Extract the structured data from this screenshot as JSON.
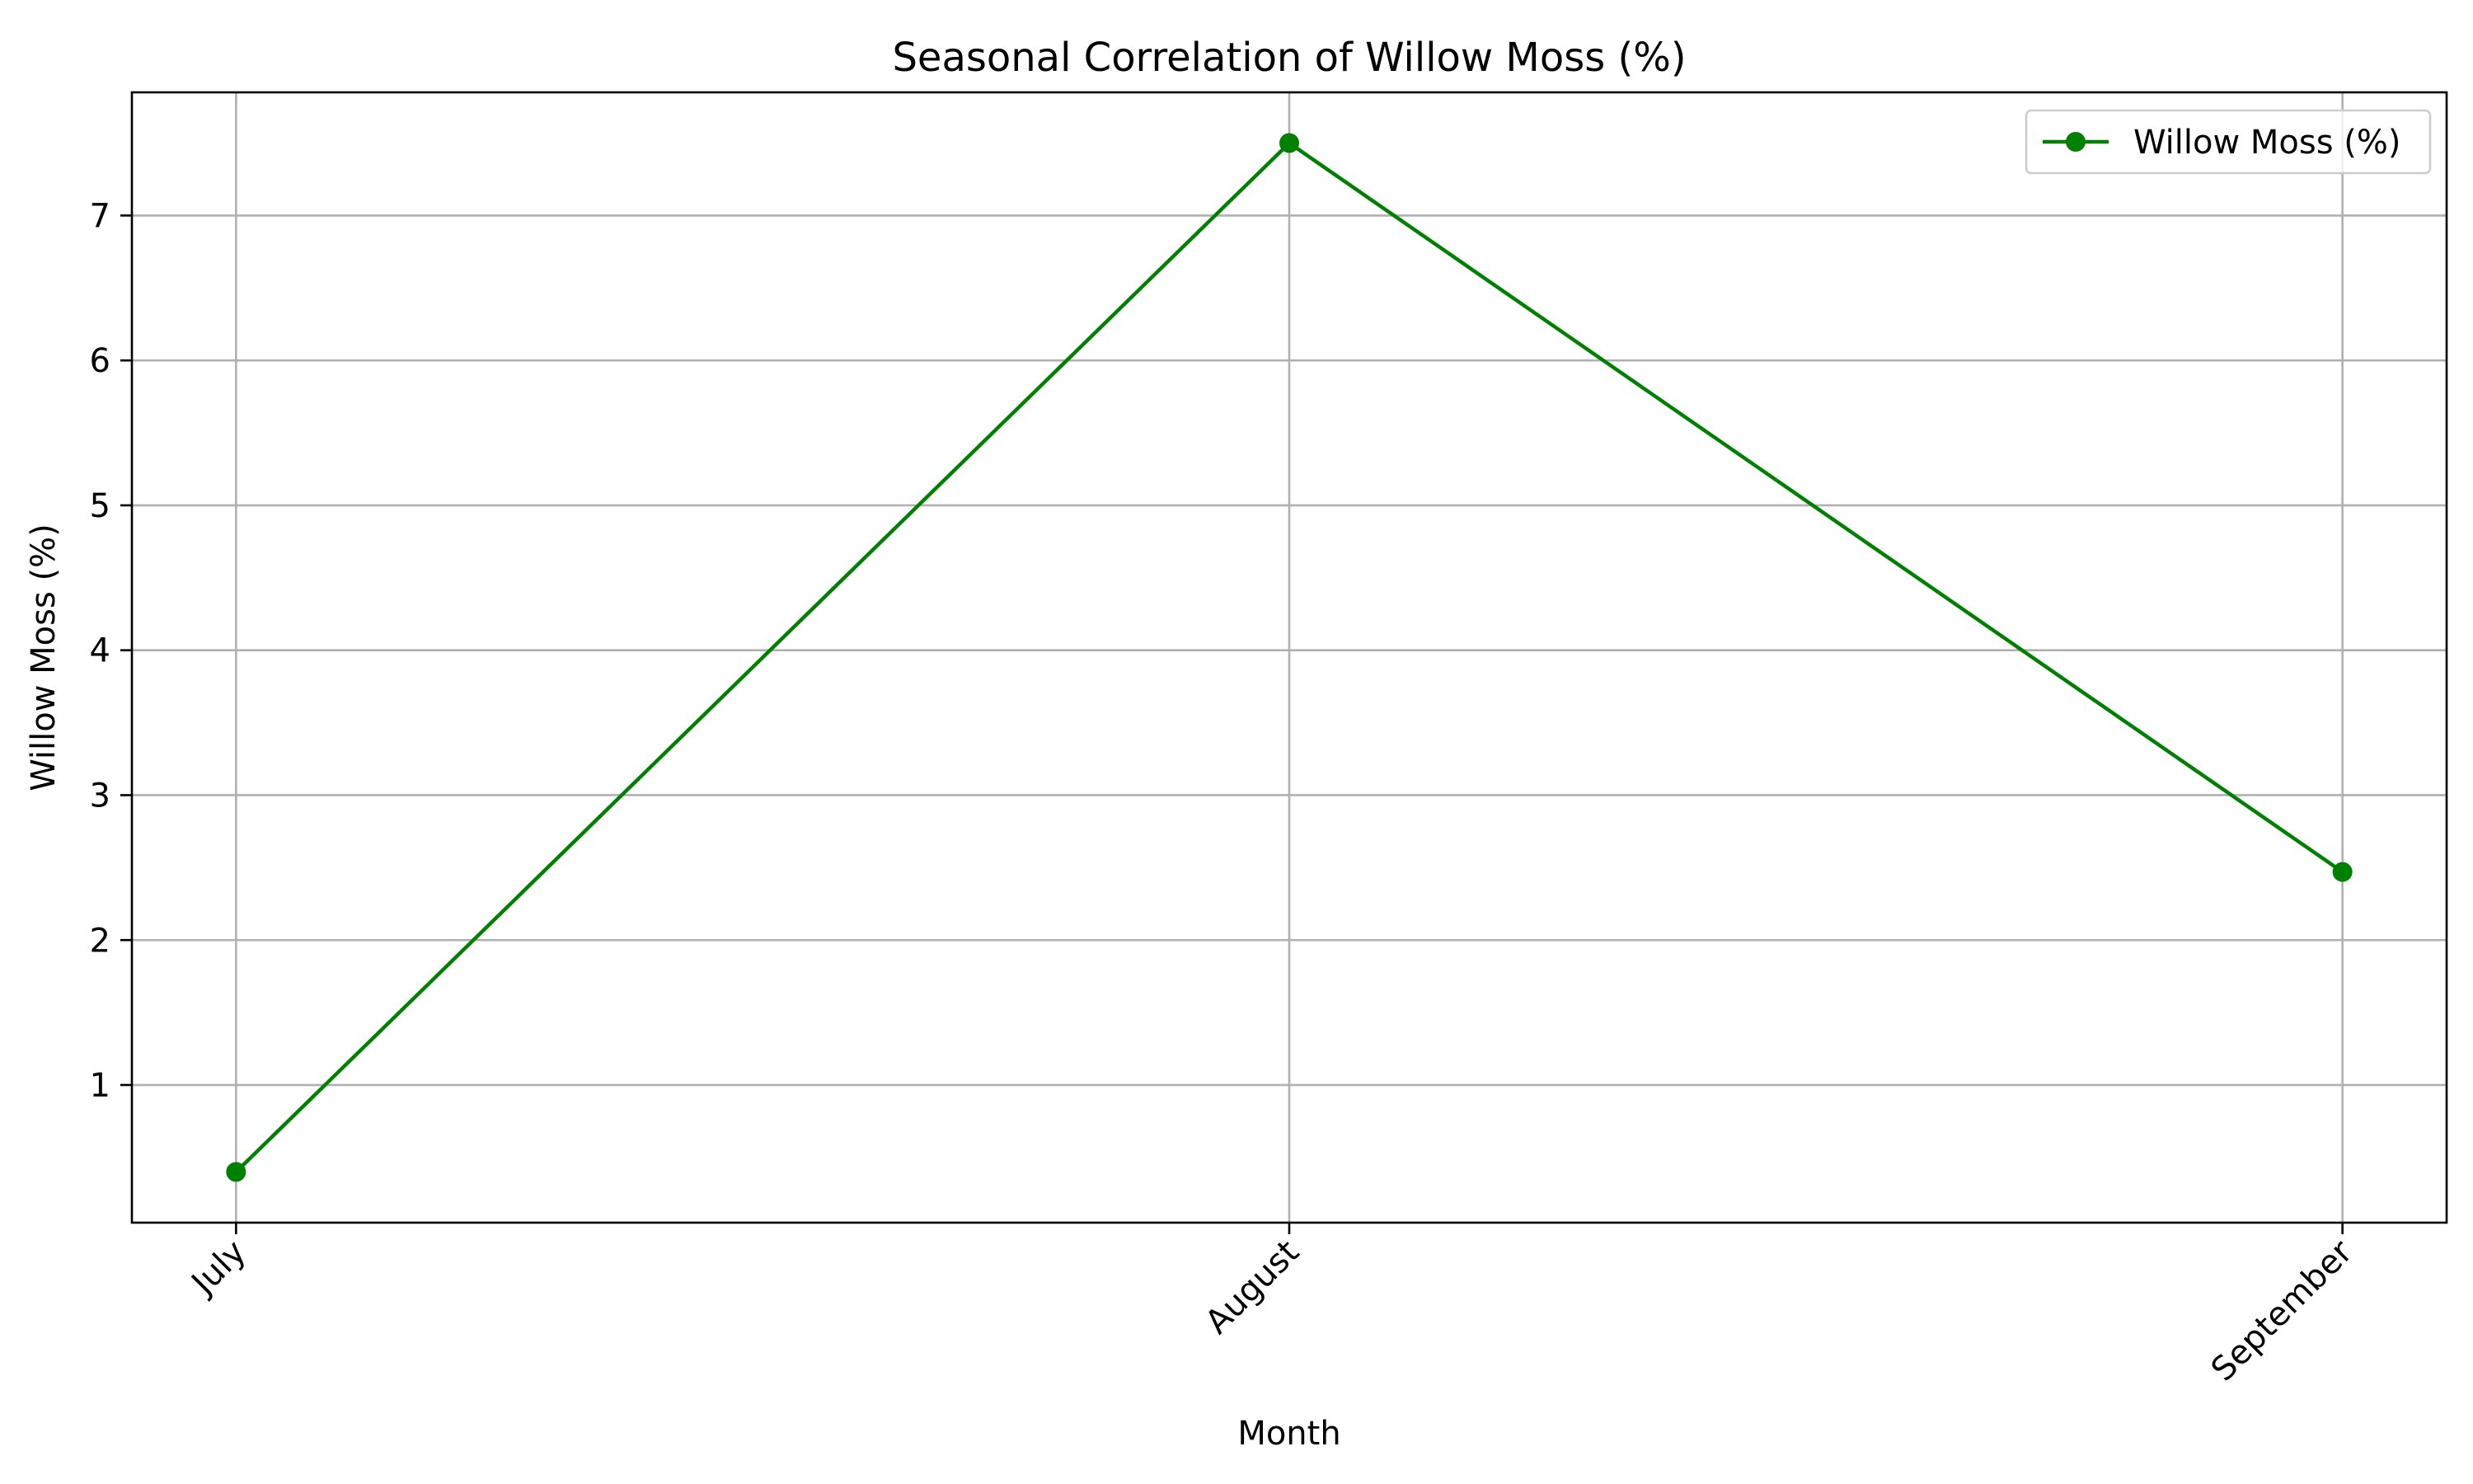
{
  "chart_data": {
    "type": "line",
    "title": "Seasonal Correlation of Willow Moss (%)",
    "xlabel": "Month",
    "ylabel": "Willow Moss (%)",
    "categories": [
      "July",
      "August",
      "September"
    ],
    "series": [
      {
        "name": "Willow Moss (%)",
        "values": [
          0.4,
          7.5,
          2.47
        ],
        "color": "#008000",
        "marker": "circle"
      }
    ],
    "ylim": [
      0.05,
      7.85
    ],
    "yticks": [
      1,
      2,
      3,
      4,
      5,
      6,
      7
    ],
    "grid": true,
    "legend": "top-right",
    "x_tick_rotation_deg": 45
  }
}
